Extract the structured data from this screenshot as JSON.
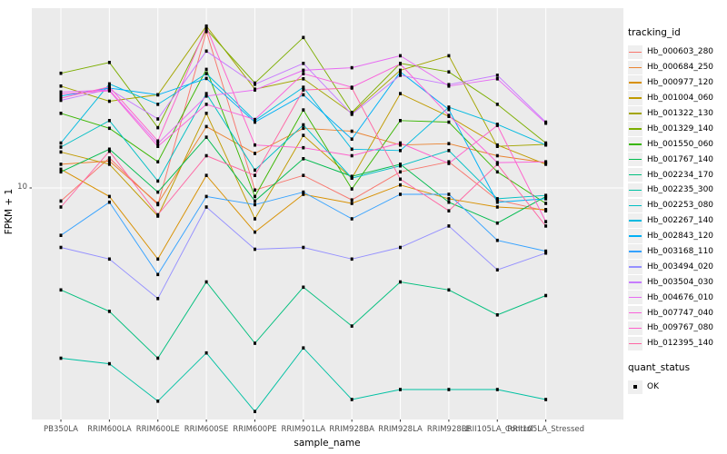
{
  "figure": {
    "y_axis": {
      "label": "FPKM + 1",
      "tick_label": "10"
    },
    "x_axis": {
      "label": "sample_name"
    },
    "legend": {
      "tracking_title": "tracking_id",
      "quant_title": "quant_status",
      "quant_items": [
        {
          "label": "OK",
          "marker": "black-square"
        }
      ]
    },
    "colors": {
      "panel_bg": "#ebebeb",
      "grid": "#ffffff",
      "key_bg": "#efefef",
      "tick_text": "#4d4d4d",
      "point": "#000000"
    }
  },
  "chart_data": {
    "type": "line",
    "title": "",
    "xlabel": "sample_name",
    "ylabel": "FPKM + 1",
    "y_scale": "log10",
    "grid": true,
    "legend_position": "right",
    "y_ticks": [
      {
        "value": 10,
        "label": "10"
      }
    ],
    "x_categories": [
      "PB350LA",
      "RRIM600LA",
      "RRIM600LE",
      "RRIM600SE",
      "RRIM600PE",
      "RRIM901LA",
      "RRIM928BA",
      "RRIM928LA",
      "RRIM928LE",
      "RRII105LA_Control",
      "RRII105LA_Stressed"
    ],
    "series": [
      {
        "name": "Hb_000603_280",
        "color": "#F8766D",
        "quant_status": "OK",
        "values": [
          8.8,
          13.4,
          8.5,
          46.0,
          9.8,
          11.3,
          8.9,
          11.7,
          12.9,
          8.9,
          8.0
        ]
      },
      {
        "name": "Hb_000684_250",
        "color": "#EA8331",
        "quant_status": "OK",
        "values": [
          12.6,
          13.0,
          8.6,
          18.2,
          14.0,
          17.9,
          17.4,
          15.2,
          15.4,
          13.7,
          12.8
        ]
      },
      {
        "name": "Hb_000977_120",
        "color": "#D89000",
        "quant_status": "OK",
        "values": [
          12.0,
          9.2,
          5.0,
          11.3,
          6.5,
          9.4,
          8.6,
          10.3,
          9.0,
          8.3,
          8.1
        ]
      },
      {
        "name": "Hb_001004_060",
        "color": "#C09B00",
        "quant_status": "OK",
        "values": [
          14.2,
          12.6,
          7.6,
          20.7,
          7.4,
          16.7,
          11.0,
          25.1,
          20.1,
          15.2,
          12.6
        ]
      },
      {
        "name": "Hb_001322_130",
        "color": "#A3A500",
        "quant_status": "OK",
        "values": [
          27.0,
          23.3,
          24.8,
          48.5,
          26.2,
          29.0,
          20.7,
          31.5,
          36.3,
          15.0,
          15.3
        ]
      },
      {
        "name": "Hb_001329_140",
        "color": "#7CAE00",
        "quant_status": "OK",
        "values": [
          30.6,
          34.0,
          18.0,
          47.0,
          27.8,
          43.4,
          20.9,
          33.7,
          31.0,
          22.6,
          15.5
        ]
      },
      {
        "name": "Hb_001550_060",
        "color": "#39B600",
        "quant_status": "OK",
        "values": [
          20.7,
          17.9,
          12.9,
          31.8,
          9.2,
          21.4,
          9.9,
          19.3,
          19.0,
          11.7,
          8.6
        ]
      },
      {
        "name": "Hb_001767_140",
        "color": "#00BB4E",
        "quant_status": "OK",
        "values": [
          11.7,
          14.6,
          9.6,
          16.4,
          8.8,
          13.3,
          11.2,
          12.6,
          8.7,
          7.1,
          9.2
        ]
      },
      {
        "name": "Hb_002234_170",
        "color": "#00BF7D",
        "quant_status": "OK",
        "values": [
          3.7,
          3.0,
          1.9,
          4.0,
          2.2,
          3.8,
          2.6,
          4.0,
          3.7,
          2.9,
          3.5
        ]
      },
      {
        "name": "Hb_002235_300",
        "color": "#00C1A3",
        "quant_status": "OK",
        "values": [
          1.9,
          1.8,
          1.25,
          2.0,
          1.13,
          2.1,
          1.27,
          1.4,
          1.4,
          1.4,
          1.27
        ]
      },
      {
        "name": "Hb_002253_080",
        "color": "#00BFC4",
        "quant_status": "OK",
        "values": [
          14.9,
          19.3,
          10.7,
          25.1,
          11.9,
          18.5,
          11.0,
          12.4,
          14.4,
          9.0,
          9.3
        ]
      },
      {
        "name": "Hb_002267_140",
        "color": "#00BAE0",
        "quant_status": "OK",
        "values": [
          15.5,
          27.6,
          22.6,
          30.5,
          19.3,
          26.7,
          14.6,
          14.4,
          22.0,
          18.6,
          15.2
        ]
      },
      {
        "name": "Hb_002843_120",
        "color": "#00B0F6",
        "quant_status": "OK",
        "values": [
          24.5,
          26.5,
          24.8,
          29.1,
          19.0,
          24.8,
          16.1,
          31.0,
          21.5,
          8.7,
          9.0
        ]
      },
      {
        "name": "Hb_003168_110",
        "color": "#35A2FF",
        "quant_status": "OK",
        "values": [
          6.3,
          8.7,
          4.3,
          9.2,
          8.5,
          9.6,
          7.4,
          9.4,
          9.4,
          6.0,
          5.4
        ]
      },
      {
        "name": "Hb_003494_020",
        "color": "#9590FF",
        "quant_status": "OK",
        "values": [
          5.6,
          5.0,
          3.4,
          8.3,
          5.5,
          5.6,
          5.0,
          5.6,
          6.9,
          4.5,
          5.3
        ]
      },
      {
        "name": "Hb_003504_030",
        "color": "#C77CFF",
        "quant_status": "OK",
        "values": [
          23.5,
          26.2,
          19.6,
          38.0,
          27.5,
          33.7,
          20.5,
          30.0,
          27.4,
          30.0,
          19.0
        ]
      },
      {
        "name": "Hb_004676_010",
        "color": "#E76BF3",
        "quant_status": "OK",
        "values": [
          25.5,
          26.0,
          15.4,
          24.5,
          26.0,
          31.5,
          32.3,
          36.3,
          27.0,
          29.0,
          18.8
        ]
      },
      {
        "name": "Hb_007747_040",
        "color": "#FA62DB",
        "quant_status": "OK",
        "values": [
          25.0,
          25.8,
          15.0,
          22.6,
          19.5,
          30.5,
          26.7,
          33.5,
          20.3,
          12.8,
          12.9
        ]
      },
      {
        "name": "Hb_009767_080",
        "color": "#FF61CC",
        "quant_status": "OK",
        "values": [
          24.0,
          26.8,
          15.8,
          48.0,
          15.2,
          14.8,
          13.7,
          15.5,
          12.7,
          18.4,
          7.2
        ]
      },
      {
        "name": "Hb_012395_140",
        "color": "#FF67A4",
        "quant_status": "OK",
        "values": [
          8.3,
          14.3,
          7.7,
          13.7,
          11.3,
          26.0,
          26.5,
          10.9,
          8.0,
          12.6,
          6.9
        ]
      }
    ]
  }
}
